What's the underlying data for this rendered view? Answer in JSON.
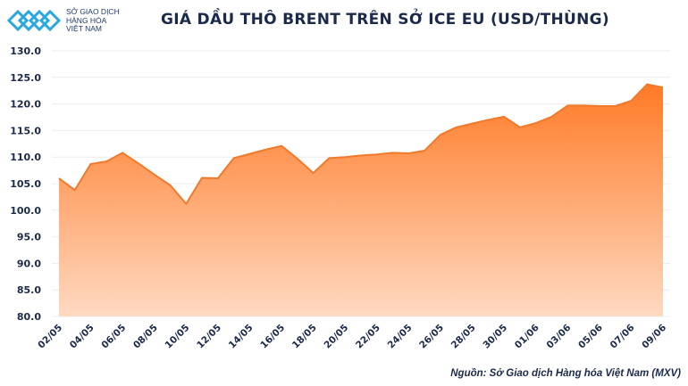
{
  "logo": {
    "line1": "SỞ GIAO DỊCH",
    "line2": "HÀNG HÓA",
    "line3": "VIỆT NAM"
  },
  "source": "Nguồn: Sở Giao dịch Hàng hóa Việt Nam (MXV)",
  "chart_data": {
    "type": "area",
    "title": "GIÁ DẦU THÔ BRENT TRÊN SỞ ICE EU (USD/THÙNG)",
    "xlabel": "",
    "ylabel": "",
    "ylim": [
      80,
      130
    ],
    "yticks": [
      "80.0",
      "85.0",
      "90.0",
      "95.0",
      "100.0",
      "105.0",
      "110.0",
      "115.0",
      "120.0",
      "125.0",
      "130.0"
    ],
    "grid": true,
    "colors": {
      "line": "#f07a2a",
      "fill_top": "#ff7a26",
      "fill_bottom": "#ffd9c2"
    },
    "x": [
      "02/05",
      "03/05",
      "04/05",
      "05/05",
      "06/05",
      "07/05",
      "08/05",
      "09/05",
      "10/05",
      "11/05",
      "12/05",
      "13/05",
      "14/05",
      "15/05",
      "16/05",
      "17/05",
      "18/05",
      "19/05",
      "20/05",
      "21/05",
      "22/05",
      "23/05",
      "24/05",
      "25/05",
      "26/05",
      "27/05",
      "28/05",
      "29/05",
      "30/05",
      "31/05",
      "01/06",
      "02/06",
      "03/06",
      "04/06",
      "05/06",
      "06/06",
      "07/06",
      "08/06",
      "09/06"
    ],
    "xtick_labels": [
      "02/05",
      "04/05",
      "06/05",
      "08/05",
      "10/05",
      "12/05",
      "14/05",
      "16/05",
      "18/05",
      "20/05",
      "22/05",
      "24/05",
      "26/05",
      "28/05",
      "30/05",
      "01/06",
      "03/06",
      "05/06",
      "07/06",
      "09/06"
    ],
    "values": [
      106.0,
      103.8,
      108.7,
      109.2,
      110.8,
      108.8,
      106.7,
      104.7,
      101.2,
      106.1,
      106.0,
      109.8,
      110.6,
      111.4,
      112.1,
      109.7,
      107.0,
      109.8,
      110.0,
      110.3,
      110.5,
      110.8,
      110.7,
      111.2,
      114.2,
      115.6,
      116.3,
      117.0,
      117.6,
      115.6,
      116.4,
      117.6,
      119.7,
      119.7,
      119.6,
      119.6,
      120.6,
      123.7,
      123.1
    ]
  }
}
